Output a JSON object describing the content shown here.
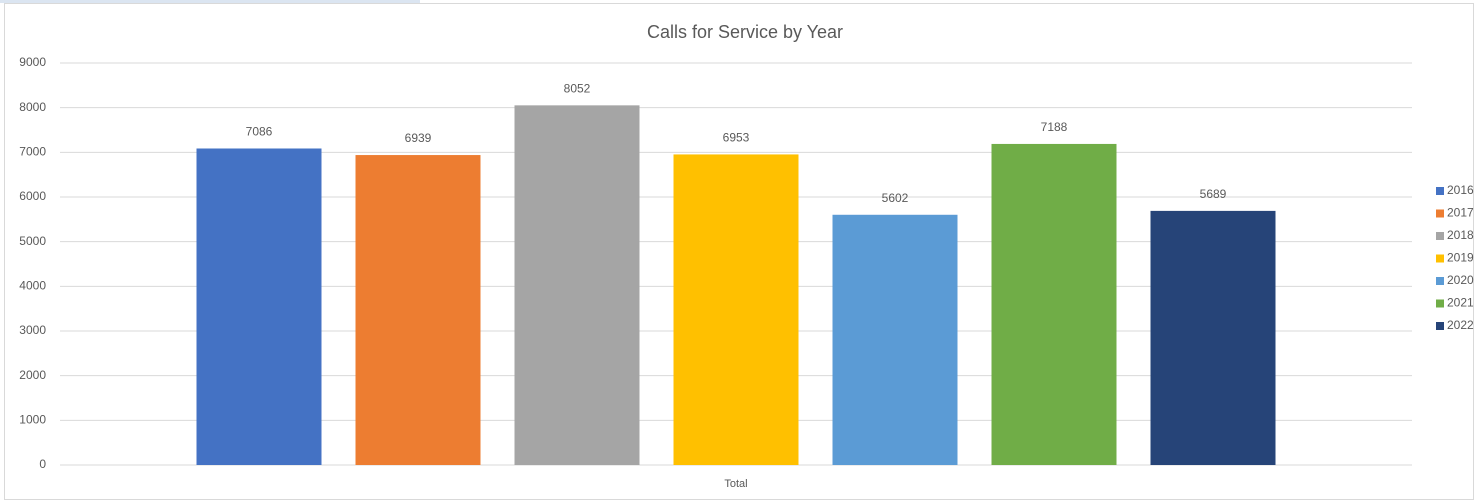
{
  "chart_data": {
    "type": "bar",
    "title": "Calls for Service by Year",
    "categories": [
      "Total"
    ],
    "series": [
      {
        "name": "2016",
        "color": "#4472c4",
        "values": [
          7086
        ]
      },
      {
        "name": "2017",
        "color": "#ed7d31",
        "values": [
          6939
        ]
      },
      {
        "name": "2018",
        "color": "#a5a5a5",
        "values": [
          8052
        ]
      },
      {
        "name": "2019",
        "color": "#ffc000",
        "values": [
          6953
        ]
      },
      {
        "name": "2020",
        "color": "#5b9bd5",
        "values": [
          5602
        ]
      },
      {
        "name": "2021",
        "color": "#70ad47",
        "values": [
          7188
        ]
      },
      {
        "name": "2022",
        "color": "#264478",
        "values": [
          5689
        ]
      }
    ],
    "ylim": [
      0,
      9000
    ],
    "yticks": [
      0,
      1000,
      2000,
      3000,
      4000,
      5000,
      6000,
      7000,
      8000,
      9000
    ],
    "grid": true,
    "legend": "right",
    "data_labels": true
  }
}
